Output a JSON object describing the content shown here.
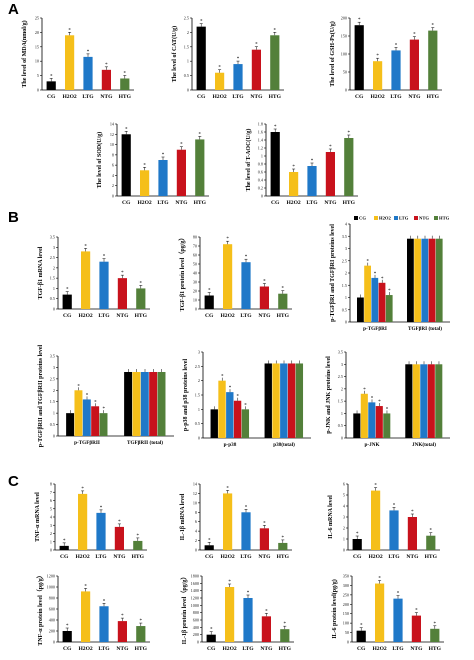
{
  "panels": [
    {
      "letter": "A"
    },
    {
      "letter": "B"
    },
    {
      "letter": "C"
    }
  ],
  "colors": {
    "CG": "#000000",
    "H2O2": "#f5bf1a",
    "LTG": "#1f78c8",
    "NTG": "#c8121c",
    "HTG": "#53803a"
  },
  "groups": [
    "CG",
    "H2O2",
    "LTG",
    "NTG",
    "HTG"
  ],
  "chart_data": [
    {
      "id": "mda",
      "type": "bar",
      "panel": "A",
      "ylabel": "The level of MDA(nmol/g)",
      "categories": [
        "CG",
        "H2O2",
        "LTG",
        "NTG",
        "HTG"
      ],
      "values": [
        3,
        19,
        11.5,
        7,
        4
      ],
      "ylim": [
        0,
        25
      ],
      "yticks": [
        0,
        5,
        10,
        15,
        20,
        25
      ]
    },
    {
      "id": "cat",
      "type": "bar",
      "panel": "A",
      "ylabel": "The level of CAT(U/g)",
      "categories": [
        "CG",
        "H2O2",
        "LTG",
        "NTG",
        "HTG"
      ],
      "values": [
        2.2,
        0.6,
        0.9,
        1.4,
        1.9
      ],
      "ylim": [
        0,
        2.5
      ],
      "yticks": [
        0,
        0.5,
        1,
        1.5,
        2,
        2.5
      ]
    },
    {
      "id": "gsh",
      "type": "bar",
      "panel": "A",
      "ylabel": "The level of GSH-Px(U/g)",
      "categories": [
        "CG",
        "H2O2",
        "LTG",
        "NTG",
        "HTG"
      ],
      "values": [
        180,
        80,
        110,
        140,
        165
      ],
      "ylim": [
        0,
        200
      ],
      "yticks": [
        0,
        50,
        100,
        150,
        200
      ]
    },
    {
      "id": "sod",
      "type": "bar",
      "panel": "A",
      "ylabel": "The level of SOD(U/g)",
      "categories": [
        "CG",
        "H2O2",
        "LTG",
        "NTG",
        "HTG"
      ],
      "values": [
        12,
        5,
        7,
        9,
        11
      ],
      "ylim": [
        0,
        14
      ],
      "yticks": [
        0,
        2,
        4,
        6,
        8,
        10,
        12,
        14
      ]
    },
    {
      "id": "taoc",
      "type": "bar",
      "panel": "A",
      "ylabel": "The level of T-AOC(U/g)",
      "categories": [
        "CG",
        "H2O2",
        "LTG",
        "NTG",
        "HTG"
      ],
      "values": [
        1.6,
        0.6,
        0.75,
        1.1,
        1.45
      ],
      "ylim": [
        0,
        1.8
      ],
      "yticks": [
        0,
        0.2,
        0.4,
        0.6,
        0.8,
        1,
        1.2,
        1.4,
        1.6,
        1.8
      ]
    },
    {
      "id": "tgfb1m",
      "type": "bar",
      "panel": "B",
      "ylabel": "TGF-β1 mRNA level",
      "categories": [
        "CG",
        "H2O2",
        "LTG",
        "NTG",
        "HTG"
      ],
      "values": [
        0.7,
        2.8,
        2.3,
        1.5,
        1.0
      ],
      "ylim": [
        0,
        3.5
      ],
      "yticks": [
        0,
        0.5,
        1,
        1.5,
        2,
        2.5,
        3,
        3.5
      ]
    },
    {
      "id": "tgfb1p",
      "type": "bar",
      "panel": "B",
      "ylabel": "TGF-β1 protein level（pg/g）",
      "categories": [
        "CG",
        "H2O2",
        "LTG",
        "NTG",
        "HTG"
      ],
      "values": [
        15,
        72,
        52,
        25,
        17
      ],
      "ylim": [
        0,
        80
      ],
      "yticks": [
        0,
        10,
        20,
        30,
        40,
        50,
        60,
        70,
        80
      ]
    },
    {
      "id": "ptgfri",
      "type": "bar",
      "panel": "B",
      "ylabel": "p-TGFβRI and TGFβRI proteins level",
      "groupcats": [
        "p-TGFβRI",
        "TGFβRI (total)"
      ],
      "series": [
        {
          "name": "CG",
          "values": [
            1.0,
            3.4
          ]
        },
        {
          "name": "H2O2",
          "values": [
            2.3,
            3.4
          ]
        },
        {
          "name": "LTG",
          "values": [
            1.8,
            3.4
          ]
        },
        {
          "name": "NTG",
          "values": [
            1.6,
            3.4
          ]
        },
        {
          "name": "HTG",
          "values": [
            1.1,
            3.4
          ]
        }
      ],
      "ylim": [
        0,
        4
      ],
      "yticks": [
        0,
        0.5,
        1,
        1.5,
        2,
        2.5,
        3,
        3.5,
        4
      ],
      "legend": "top"
    },
    {
      "id": "ptgfrii",
      "type": "bar",
      "panel": "B",
      "ylabel": "p-TGFβRII and TGFβRII proteins level",
      "groupcats": [
        "p-TGFβRII",
        "TGFβRII (total)"
      ],
      "series": [
        {
          "name": "CG",
          "values": [
            1.0,
            2.8
          ]
        },
        {
          "name": "H2O2",
          "values": [
            2.0,
            2.8
          ]
        },
        {
          "name": "LTG",
          "values": [
            1.6,
            2.8
          ]
        },
        {
          "name": "NTG",
          "values": [
            1.3,
            2.8
          ]
        },
        {
          "name": "HTG",
          "values": [
            1.0,
            2.8
          ]
        }
      ],
      "ylim": [
        0,
        3.5
      ],
      "yticks": [
        0,
        0.5,
        1,
        1.5,
        2,
        2.5,
        3,
        3.5
      ]
    },
    {
      "id": "pp38",
      "type": "bar",
      "panel": "B",
      "ylabel": "p-p38 and p38 proteins level",
      "groupcats": [
        "p-p38",
        "p38(total)"
      ],
      "series": [
        {
          "name": "CG",
          "values": [
            1.0,
            2.6
          ]
        },
        {
          "name": "H2O2",
          "values": [
            2.0,
            2.6
          ]
        },
        {
          "name": "LTG",
          "values": [
            1.6,
            2.6
          ]
        },
        {
          "name": "NTG",
          "values": [
            1.3,
            2.6
          ]
        },
        {
          "name": "HTG",
          "values": [
            1.0,
            2.6
          ]
        }
      ],
      "ylim": [
        0,
        3
      ],
      "yticks": [
        0,
        0.5,
        1,
        1.5,
        2,
        2.5,
        3
      ]
    },
    {
      "id": "pjnk",
      "type": "bar",
      "panel": "B",
      "ylabel": "p-JNK and JNK proteins level",
      "groupcats": [
        "p-JNK",
        "JNK(total)"
      ],
      "series": [
        {
          "name": "CG",
          "values": [
            1.0,
            3.0
          ]
        },
        {
          "name": "H2O2",
          "values": [
            1.8,
            3.0
          ]
        },
        {
          "name": "LTG",
          "values": [
            1.45,
            3.0
          ]
        },
        {
          "name": "NTG",
          "values": [
            1.3,
            3.0
          ]
        },
        {
          "name": "HTG",
          "values": [
            1.0,
            3.0
          ]
        }
      ],
      "ylim": [
        0,
        3.5
      ],
      "yticks": [
        0,
        0.5,
        1,
        1.5,
        2,
        2.5,
        3,
        3.5
      ]
    },
    {
      "id": "tnfm",
      "type": "bar",
      "panel": "C",
      "ylabel": "TNF-α mRNA level",
      "categories": [
        "CG",
        "H2O2",
        "LTG",
        "NTG",
        "HTG"
      ],
      "values": [
        0.5,
        6.8,
        4.5,
        2.8,
        1.1
      ],
      "ylim": [
        0,
        8
      ],
      "yticks": [
        0,
        1,
        2,
        3,
        4,
        5,
        6,
        7,
        8
      ]
    },
    {
      "id": "il1m",
      "type": "bar",
      "panel": "C",
      "ylabel": "IL-1β mRNA level",
      "categories": [
        "CG",
        "H2O2",
        "LTG",
        "NTG",
        "HTG"
      ],
      "values": [
        1,
        12,
        8,
        4.6,
        1.5
      ],
      "ylim": [
        0,
        14
      ],
      "yticks": [
        0,
        2,
        4,
        6,
        8,
        10,
        12,
        14
      ]
    },
    {
      "id": "il6m",
      "type": "bar",
      "panel": "C",
      "ylabel": "IL-6 mRNA level",
      "categories": [
        "CG",
        "H2O2",
        "LTG",
        "NTG",
        "HTG"
      ],
      "values": [
        1.0,
        5.4,
        3.6,
        3.0,
        1.3
      ],
      "ylim": [
        0,
        6
      ],
      "yticks": [
        0,
        1,
        2,
        3,
        4,
        5,
        6
      ]
    },
    {
      "id": "tnfp",
      "type": "bar",
      "panel": "C",
      "ylabel": "TNF-α protein level（pg/g）",
      "categories": [
        "CG",
        "H2O2",
        "LTG",
        "NTG",
        "HTG"
      ],
      "values": [
        200,
        920,
        650,
        380,
        290
      ],
      "ylim": [
        0,
        1200
      ],
      "yticks": [
        0,
        200,
        400,
        600,
        800,
        1000,
        1200
      ]
    },
    {
      "id": "il1p",
      "type": "bar",
      "panel": "C",
      "ylabel": "IL-1β protein level（pg/g）",
      "categories": [
        "CG",
        "H2O2",
        "LTG",
        "NTG",
        "HTG"
      ],
      "values": [
        200,
        1500,
        1200,
        700,
        350
      ],
      "ylim": [
        0,
        1800
      ],
      "yticks": [
        0,
        200,
        400,
        600,
        800,
        1000,
        1200,
        1400,
        1600,
        1800
      ]
    },
    {
      "id": "il6p",
      "type": "bar",
      "panel": "C",
      "ylabel": "IL-6 protein level(pg/g)",
      "categories": [
        "CG",
        "H2O2",
        "LTG",
        "NTG",
        "HTG"
      ],
      "values": [
        60,
        310,
        230,
        140,
        70
      ],
      "ylim": [
        0,
        350
      ],
      "yticks": [
        0,
        50,
        100,
        150,
        200,
        250,
        300,
        350
      ]
    }
  ]
}
